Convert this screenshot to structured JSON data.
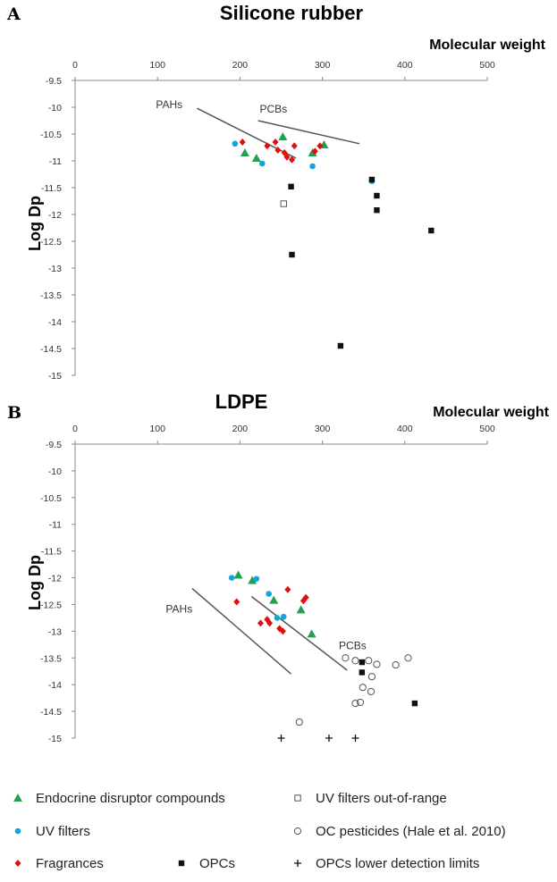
{
  "chart_data": [
    {
      "panel": "A",
      "type": "scatter",
      "title": "Silicone rubber",
      "xlabel": "Molecular weight",
      "ylabel": "Log Dp",
      "xlim": [
        0,
        500
      ],
      "ylim": [
        -15,
        -9.5
      ],
      "xticks": [
        0,
        100,
        200,
        300,
        400,
        500
      ],
      "yticks": [
        -9.5,
        -10,
        -10.5,
        -11,
        -11.5,
        -12,
        -12.5,
        -13,
        -13.5,
        -14,
        -14.5,
        -15
      ],
      "x_axis_position": "top",
      "grid": false,
      "series": [
        {
          "name": "Endocrine disruptor compounds",
          "marker": "triangle",
          "color": "#22a050",
          "points": [
            [
              206,
              -10.85
            ],
            [
              220,
              -10.95
            ],
            [
              252,
              -10.55
            ],
            [
              288,
              -10.85
            ],
            [
              302,
              -10.7
            ]
          ]
        },
        {
          "name": "UV filters",
          "marker": "circle",
          "color": "#12a5dc",
          "points": [
            [
              194,
              -10.68
            ],
            [
              227,
              -11.05
            ],
            [
              288,
              -11.1
            ],
            [
              360,
              -11.38
            ]
          ]
        },
        {
          "name": "Fragrances",
          "marker": "diamond",
          "color": "#e01010",
          "points": [
            [
              203,
              -10.65
            ],
            [
              233,
              -10.72
            ],
            [
              243,
              -10.65
            ],
            [
              246,
              -10.8
            ],
            [
              254,
              -10.85
            ],
            [
              257,
              -10.93
            ],
            [
              263,
              -10.98
            ],
            [
              266,
              -10.72
            ],
            [
              291,
              -10.82
            ],
            [
              297,
              -10.72
            ]
          ]
        },
        {
          "name": "UV filters out-of-range",
          "marker": "open-square",
          "color": "#555555",
          "points": [
            [
              253,
              -11.8
            ]
          ]
        },
        {
          "name": "OPCs",
          "marker": "square",
          "color": "#111111",
          "points": [
            [
              262,
              -11.48
            ],
            [
              263,
              -12.75
            ],
            [
              322,
              -14.45
            ],
            [
              360,
              -11.35
            ],
            [
              366,
              -11.65
            ],
            [
              366,
              -11.92
            ],
            [
              432,
              -12.3
            ]
          ]
        }
      ],
      "trend_lines": [
        {
          "label": "PAHs",
          "from": [
            148,
            -10.02
          ],
          "to": [
            268,
            -10.95
          ]
        },
        {
          "label": "PCBs",
          "from": [
            222,
            -10.25
          ],
          "to": [
            345,
            -10.68
          ]
        }
      ],
      "annotations": [
        {
          "text": "PAHs",
          "x": 98,
          "y": -10.02
        },
        {
          "text": "PCBs",
          "x": 224,
          "y": -10.1
        }
      ]
    },
    {
      "panel": "B",
      "type": "scatter",
      "title": "LDPE",
      "xlabel": "Molecular weight",
      "ylabel": "Log Dp",
      "xlim": [
        0,
        500
      ],
      "ylim": [
        -15,
        -9.5
      ],
      "xticks": [
        0,
        100,
        200,
        300,
        400,
        500
      ],
      "yticks": [
        -9.5,
        -10,
        -10.5,
        -11,
        -11.5,
        -12,
        -12.5,
        -13,
        -13.5,
        -14,
        -14.5,
        -15
      ],
      "x_axis_position": "top",
      "grid": false,
      "series": [
        {
          "name": "Endocrine disruptor compounds",
          "marker": "triangle",
          "color": "#22a050",
          "points": [
            [
              198,
              -11.95
            ],
            [
              215,
              -12.05
            ],
            [
              241,
              -12.42
            ],
            [
              274,
              -12.6
            ],
            [
              287,
              -13.05
            ]
          ]
        },
        {
          "name": "UV filters",
          "marker": "circle",
          "color": "#12a5dc",
          "points": [
            [
              190,
              -12.0
            ],
            [
              220,
              -12.02
            ],
            [
              235,
              -12.3
            ],
            [
              245,
              -12.75
            ],
            [
              253,
              -12.73
            ]
          ]
        },
        {
          "name": "Fragrances",
          "marker": "diamond",
          "color": "#e01010",
          "points": [
            [
              196,
              -12.45
            ],
            [
              225,
              -12.85
            ],
            [
              233,
              -12.78
            ],
            [
              236,
              -12.85
            ],
            [
              248,
              -12.95
            ],
            [
              252,
              -13.0
            ],
            [
              258,
              -12.22
            ],
            [
              277,
              -12.43
            ],
            [
              280,
              -12.37
            ]
          ]
        },
        {
          "name": "OPCs",
          "marker": "square",
          "color": "#111111",
          "points": [
            [
              348,
              -13.58
            ],
            [
              348,
              -13.77
            ],
            [
              412,
              -14.35
            ]
          ]
        },
        {
          "name": "OC pesticides (Hale et al. 2010)",
          "marker": "open-circle",
          "color": "#555555",
          "points": [
            [
              328,
              -13.5
            ],
            [
              340,
              -13.55
            ],
            [
              356,
              -13.55
            ],
            [
              366,
              -13.62
            ],
            [
              389,
              -13.63
            ],
            [
              404,
              -13.5
            ],
            [
              360,
              -13.85
            ],
            [
              349,
              -14.05
            ],
            [
              359,
              -14.13
            ],
            [
              340,
              -14.35
            ],
            [
              346,
              -14.33
            ],
            [
              272,
              -14.7
            ]
          ]
        },
        {
          "name": "OPCs lower detection limits",
          "marker": "plus",
          "color": "#111111",
          "points": [
            [
              250,
              -15.0
            ],
            [
              308,
              -15.0
            ],
            [
              340,
              -15.0
            ]
          ]
        }
      ],
      "trend_lines": [
        {
          "label": "PAHs",
          "from": [
            142,
            -12.2
          ],
          "to": [
            262,
            -13.8
          ]
        },
        {
          "label": "PCBs",
          "from": [
            214,
            -12.35
          ],
          "to": [
            330,
            -13.73
          ]
        }
      ],
      "annotations": [
        {
          "text": "PAHs",
          "x": 110,
          "y": -12.65
        },
        {
          "text": "PCBs",
          "x": 320,
          "y": -13.34
        }
      ]
    }
  ],
  "legend": {
    "placement": "bottom",
    "items": [
      {
        "label": "Endocrine disruptor compounds",
        "marker": "triangle",
        "color": "#22a050"
      },
      {
        "label": "UV filters out-of-range",
        "marker": "open-square",
        "color": "#555555"
      },
      {
        "label": "UV filters",
        "marker": "circle",
        "color": "#12a5dc"
      },
      {
        "label": "OC pesticides (Hale et al. 2010)",
        "marker": "open-circle",
        "color": "#555555"
      },
      {
        "label": "Fragrances",
        "marker": "diamond",
        "color": "#e01010"
      },
      {
        "label": "OPCs",
        "marker": "square",
        "color": "#111111"
      },
      {
        "label": "OPCs lower detection limits",
        "marker": "plus",
        "color": "#111111"
      }
    ]
  }
}
